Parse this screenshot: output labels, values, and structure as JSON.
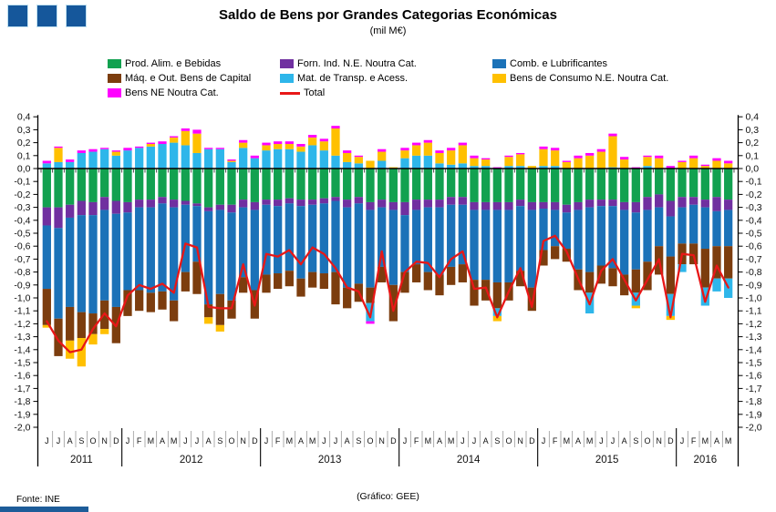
{
  "header": {
    "title": "Saldo de Bens por Grandes Categorias Económicas",
    "subtitle": "(mil M€)"
  },
  "footer": {
    "source": "Fonte: INE",
    "credit": "(Gráfico: GEE)"
  },
  "colors": {
    "green": "#12A150",
    "purple": "#7030A0",
    "blue": "#1B72B8",
    "brown": "#7C3D0E",
    "cyan": "#2EB6EA",
    "yellow": "#FFC000",
    "magenta": "#FF00FF",
    "red": "#E81717",
    "logo_blue": "#15579B",
    "axis": "#000000"
  },
  "legend": [
    {
      "label": "Prod. Alim. e Bebidas",
      "color": "#12A150",
      "marker": "box"
    },
    {
      "label": "Forn. Ind. N.E. Noutra Cat.",
      "color": "#7030A0",
      "marker": "box"
    },
    {
      "label": "Comb. e Lubrificantes",
      "color": "#1B72B8",
      "marker": "box"
    },
    {
      "label": "Máq. e Out. Bens de Capital",
      "color": "#7C3D0E",
      "marker": "box"
    },
    {
      "label": "Mat. de Transp. e Acess.",
      "color": "#2EB6EA",
      "marker": "box"
    },
    {
      "label": "Bens de Consumo N.E. Noutra Cat.",
      "color": "#FFC000",
      "marker": "box"
    },
    {
      "label": "Bens NE Noutra Cat.",
      "color": "#FF00FF",
      "marker": "box"
    },
    {
      "label": "Total",
      "color": "#E81717",
      "marker": "line"
    }
  ],
  "chart_data": {
    "type": "bar",
    "subtype": "stacked-bars-with-line",
    "title": "Saldo de Bens por Grandes Categorias Económicas",
    "units": "mil M€",
    "ylim": [
      -2.0,
      0.4
    ],
    "grid": false,
    "y_ticks": [
      "0,4",
      "0,3",
      "0,2",
      "0,1",
      "0,0",
      "-0,1",
      "-0,2",
      "-0,3",
      "-0,4",
      "-0,5",
      "-0,6",
      "-0,7",
      "-0,8",
      "-0,9",
      "-1,0",
      "-1,1",
      "-1,2",
      "-1,3",
      "-1,4",
      "-1,5",
      "-1,6",
      "-1,7",
      "-1,8",
      "-1,9",
      "-2,0"
    ],
    "months": [
      "J",
      "J",
      "A",
      "S",
      "O",
      "N",
      "D",
      "J",
      "F",
      "M",
      "A",
      "M",
      "J",
      "J",
      "A",
      "S",
      "O",
      "N",
      "D",
      "J",
      "F",
      "M",
      "A",
      "M",
      "J",
      "J",
      "A",
      "S",
      "O",
      "N",
      "D",
      "J",
      "F",
      "M",
      "A",
      "M",
      "J",
      "J",
      "A",
      "S",
      "O",
      "N",
      "D",
      "J",
      "F",
      "M",
      "A",
      "M",
      "J",
      "J",
      "A",
      "S",
      "O",
      "N",
      "D",
      "J",
      "F",
      "M",
      "A",
      "M"
    ],
    "years": [
      {
        "label": "2011",
        "months": 7
      },
      {
        "label": "2012",
        "months": 12
      },
      {
        "label": "2013",
        "months": 12
      },
      {
        "label": "2014",
        "months": 12
      },
      {
        "label": "2015",
        "months": 12
      },
      {
        "label": "2016",
        "months": 5
      }
    ],
    "series": [
      {
        "name": "Prod. Alim. e Bebidas",
        "color": "#12A150",
        "values": [
          -0.3,
          -0.3,
          -0.28,
          -0.25,
          -0.26,
          -0.22,
          -0.25,
          -0.26,
          -0.24,
          -0.24,
          -0.22,
          -0.24,
          -0.25,
          -0.27,
          -0.3,
          -0.28,
          -0.28,
          -0.24,
          -0.26,
          -0.24,
          -0.24,
          -0.23,
          -0.24,
          -0.24,
          -0.23,
          -0.22,
          -0.24,
          -0.22,
          -0.26,
          -0.24,
          -0.26,
          -0.26,
          -0.24,
          -0.24,
          -0.24,
          -0.22,
          -0.22,
          -0.26,
          -0.26,
          -0.26,
          -0.26,
          -0.24,
          -0.26,
          -0.26,
          -0.26,
          -0.28,
          -0.26,
          -0.24,
          -0.24,
          -0.24,
          -0.26,
          -0.26,
          -0.22,
          -0.2,
          -0.25,
          -0.22,
          -0.22,
          -0.24,
          -0.22,
          -0.24
        ]
      },
      {
        "name": "Forn. Ind. N.E. Noutra Cat.",
        "color": "#7030A0",
        "values": [
          -0.14,
          -0.16,
          -0.1,
          -0.11,
          -0.1,
          -0.1,
          -0.1,
          -0.08,
          -0.06,
          -0.06,
          -0.05,
          -0.06,
          -0.03,
          -0.02,
          -0.03,
          -0.04,
          -0.06,
          -0.06,
          -0.06,
          -0.04,
          -0.05,
          -0.04,
          -0.05,
          -0.04,
          -0.04,
          -0.03,
          -0.06,
          -0.05,
          -0.06,
          -0.06,
          -0.06,
          -0.1,
          -0.08,
          -0.06,
          -0.06,
          -0.06,
          -0.06,
          -0.06,
          -0.06,
          -0.06,
          -0.06,
          -0.05,
          -0.06,
          -0.05,
          -0.06,
          -0.06,
          -0.06,
          -0.06,
          -0.05,
          -0.05,
          -0.06,
          -0.08,
          -0.1,
          -0.1,
          -0.12,
          -0.08,
          -0.06,
          -0.06,
          -0.11,
          -0.08
        ]
      },
      {
        "name": "Comb. e Lubrificantes",
        "color": "#1B72B8",
        "values": [
          -0.49,
          -0.7,
          -0.69,
          -0.75,
          -0.76,
          -0.7,
          -0.72,
          -0.6,
          -0.64,
          -0.66,
          -0.68,
          -0.72,
          -0.52,
          -0.43,
          -0.72,
          -0.65,
          -0.68,
          -0.54,
          -0.62,
          -0.54,
          -0.52,
          -0.52,
          -0.56,
          -0.52,
          -0.54,
          -0.55,
          -0.62,
          -0.62,
          -0.6,
          -0.46,
          -0.58,
          -0.44,
          -0.42,
          -0.5,
          -0.52,
          -0.48,
          -0.46,
          -0.54,
          -0.54,
          -0.56,
          -0.56,
          -0.5,
          -0.6,
          -0.32,
          -0.28,
          -0.28,
          -0.46,
          -0.5,
          -0.46,
          -0.48,
          -0.5,
          -0.44,
          -0.4,
          -0.3,
          -0.31,
          -0.28,
          -0.3,
          -0.32,
          -0.27,
          -0.28
        ]
      },
      {
        "name": "Máq. e Out. Bens de Capital",
        "color": "#7C3D0E",
        "values": [
          -0.28,
          -0.29,
          -0.26,
          -0.2,
          -0.16,
          -0.22,
          -0.28,
          -0.2,
          -0.16,
          -0.15,
          -0.14,
          -0.16,
          -0.15,
          -0.25,
          -0.1,
          -0.24,
          -0.14,
          -0.12,
          -0.22,
          -0.14,
          -0.12,
          -0.12,
          -0.14,
          -0.12,
          -0.12,
          -0.25,
          -0.16,
          -0.14,
          -0.12,
          -0.12,
          -0.28,
          -0.16,
          -0.14,
          -0.14,
          -0.16,
          -0.14,
          -0.14,
          -0.2,
          -0.16,
          -0.2,
          -0.14,
          -0.12,
          -0.18,
          -0.12,
          -0.1,
          -0.1,
          -0.16,
          -0.16,
          -0.14,
          -0.14,
          -0.16,
          -0.18,
          -0.22,
          -0.22,
          -0.29,
          -0.16,
          -0.16,
          -0.3,
          -0.25,
          -0.25
        ]
      },
      {
        "name": "Mat. de Transp. e Acess.",
        "color": "#2EB6EA",
        "values": [
          0.04,
          0.05,
          0.05,
          0.12,
          0.13,
          0.15,
          0.1,
          0.14,
          0.16,
          0.17,
          0.19,
          0.2,
          0.18,
          0.12,
          0.15,
          0.15,
          0.05,
          0.16,
          0.08,
          0.14,
          0.15,
          0.15,
          0.13,
          0.18,
          0.14,
          0.1,
          0.05,
          0.04,
          -0.14,
          0.06,
          0.0,
          0.08,
          0.1,
          0.1,
          0.04,
          0.03,
          0.04,
          0.02,
          0.02,
          -0.06,
          0.02,
          0.02,
          0.0,
          0.02,
          0.02,
          0.0,
          0.0,
          -0.16,
          0.0,
          0.01,
          0.0,
          -0.1,
          0.02,
          0.0,
          -0.17,
          -0.06,
          0.0,
          -0.14,
          -0.1,
          -0.15
        ]
      },
      {
        "name": "Bens de Consumo N.E. Noutra Cat.",
        "color": "#FFC000",
        "values": [
          -0.02,
          0.11,
          -0.14,
          -0.22,
          -0.08,
          -0.04,
          0.03,
          0.0,
          0.0,
          0.02,
          0.0,
          0.04,
          0.11,
          0.15,
          -0.05,
          -0.05,
          0.01,
          0.04,
          0.0,
          0.04,
          0.04,
          0.04,
          0.04,
          0.06,
          0.07,
          0.21,
          0.07,
          0.05,
          0.06,
          0.07,
          0.01,
          0.06,
          0.08,
          0.1,
          0.08,
          0.11,
          0.14,
          0.06,
          0.05,
          -0.04,
          0.07,
          0.09,
          0.02,
          0.13,
          0.12,
          0.05,
          0.08,
          0.1,
          0.13,
          0.24,
          0.07,
          -0.02,
          0.07,
          0.08,
          -0.03,
          0.05,
          0.08,
          0.02,
          0.06,
          0.04
        ]
      },
      {
        "name": "Bens NE Noutra Cat.",
        "color": "#FF00FF",
        "values": [
          0.02,
          0.01,
          0.02,
          0.02,
          0.02,
          0.01,
          0.01,
          0.02,
          0.01,
          0.01,
          0.02,
          0.01,
          0.02,
          0.03,
          0.01,
          0.01,
          0.01,
          0.02,
          0.02,
          0.02,
          0.02,
          0.02,
          0.02,
          0.02,
          0.02,
          0.02,
          0.02,
          0.01,
          -0.02,
          0.02,
          0.0,
          0.02,
          0.02,
          0.02,
          0.02,
          0.02,
          0.02,
          0.02,
          0.01,
          0.01,
          0.01,
          0.01,
          0.0,
          0.02,
          0.02,
          0.01,
          0.02,
          0.02,
          0.02,
          0.02,
          0.02,
          0.01,
          0.01,
          0.02,
          0.02,
          0.01,
          0.02,
          0.01,
          0.02,
          0.02
        ]
      }
    ],
    "total_line": {
      "name": "Total",
      "color": "#E81717",
      "values": [
        -1.18,
        -1.33,
        -1.42,
        -1.4,
        -1.24,
        -1.12,
        -1.22,
        -0.98,
        -0.9,
        -0.93,
        -0.89,
        -0.96,
        -0.58,
        -0.61,
        -1.07,
        -1.08,
        -1.08,
        -0.74,
        -1.06,
        -0.66,
        -0.68,
        -0.63,
        -0.74,
        -0.61,
        -0.66,
        -0.77,
        -0.92,
        -0.95,
        -1.15,
        -0.64,
        -1.1,
        -0.8,
        -0.72,
        -0.73,
        -0.84,
        -0.7,
        -0.64,
        -0.93,
        -0.92,
        -1.15,
        -0.95,
        -0.77,
        -1.07,
        -0.56,
        -0.52,
        -0.64,
        -0.85,
        -1.05,
        -0.79,
        -0.7,
        -0.86,
        -1.02,
        -0.86,
        -0.7,
        -1.15,
        -0.66,
        -0.67,
        -1.03,
        -0.75,
        -0.92
      ]
    }
  }
}
